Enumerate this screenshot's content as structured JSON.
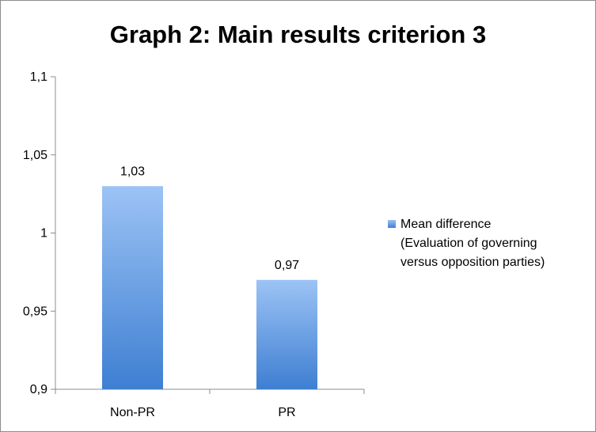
{
  "chart_data": {
    "type": "bar",
    "title": "Graph 2: Main results criterion 3",
    "categories": [
      "Non-PR",
      "PR"
    ],
    "series": [
      {
        "name": "Mean difference (Evaluation of governing versus opposition parties)",
        "values": [
          1.03,
          0.97
        ],
        "value_labels": [
          "1,03",
          "0,97"
        ]
      }
    ],
    "ylim": [
      0.9,
      1.1
    ],
    "yticks": [
      0.9,
      0.95,
      1,
      1.05,
      1.1
    ],
    "ytick_labels": [
      "0,9",
      "0,95",
      "1",
      "1,05",
      "1,1"
    ],
    "grid": false,
    "legend": "right",
    "legend_lines": [
      "Mean difference",
      "(Evaluation of governing",
      "versus opposition parties)"
    ],
    "bar_color_top": "#9cc3f5",
    "bar_color_bottom": "#3e7fd2"
  }
}
